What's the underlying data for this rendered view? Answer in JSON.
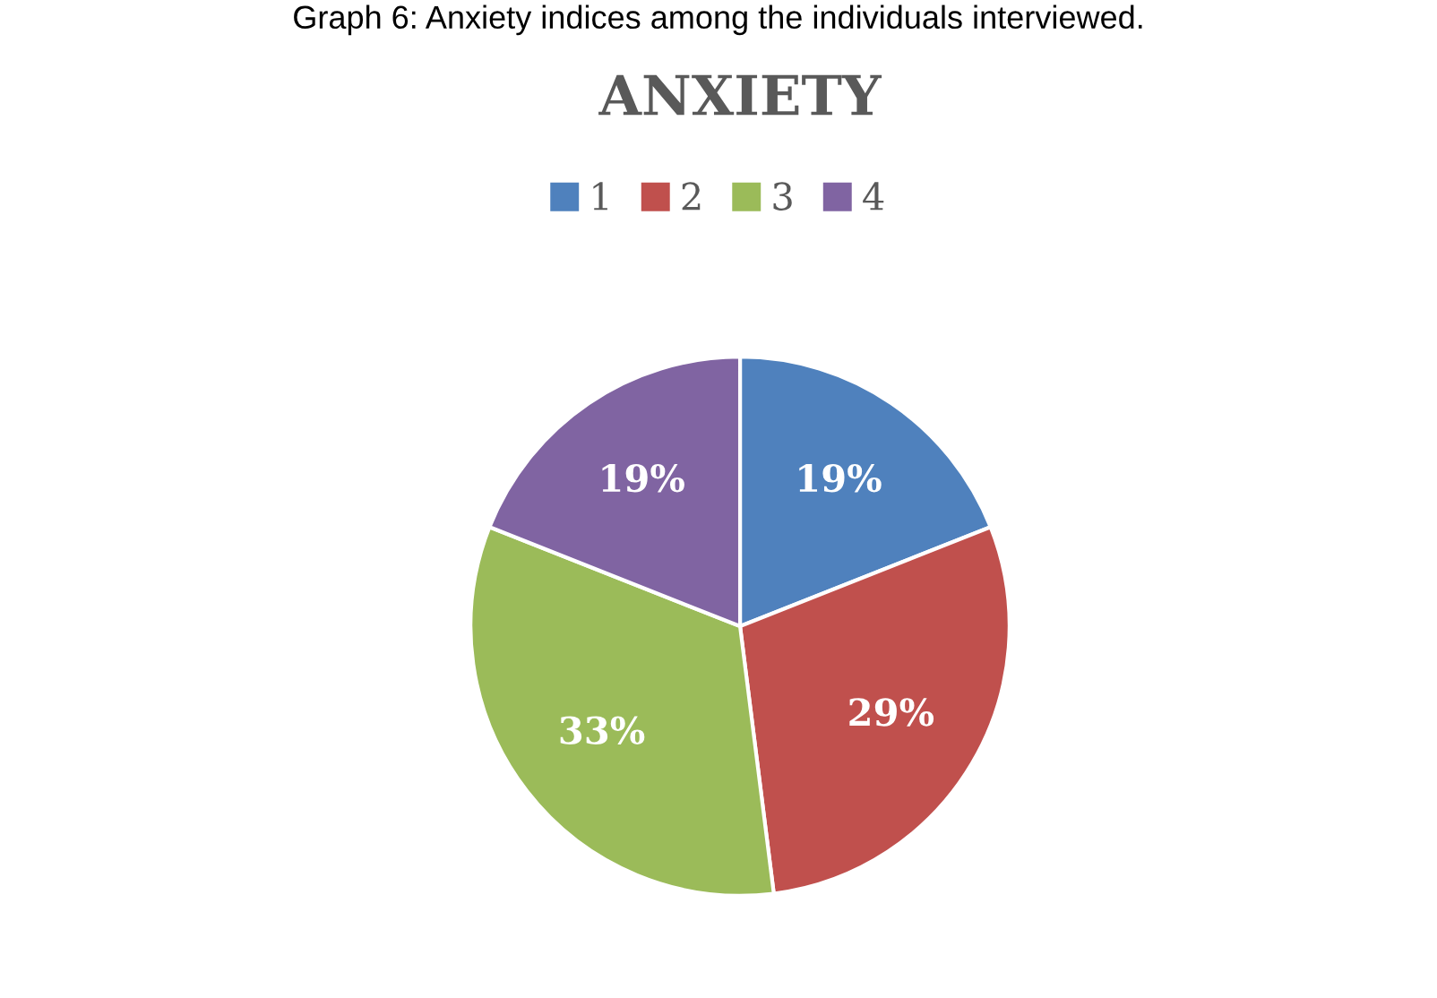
{
  "chart_data": {
    "type": "pie",
    "title": "ANXIETY",
    "annotations": [
      "Graph 6: Anxiety indices among the individuals interviewed."
    ],
    "categories": [
      "1",
      "2",
      "3",
      "4"
    ],
    "values": [
      19,
      29,
      33,
      19
    ],
    "colors": [
      "#4f81bd",
      "#c0504d",
      "#9bbb59",
      "#8064a2"
    ],
    "value_labels": [
      "19%",
      "29%",
      "33%",
      "19%"
    ],
    "legend": "top"
  }
}
